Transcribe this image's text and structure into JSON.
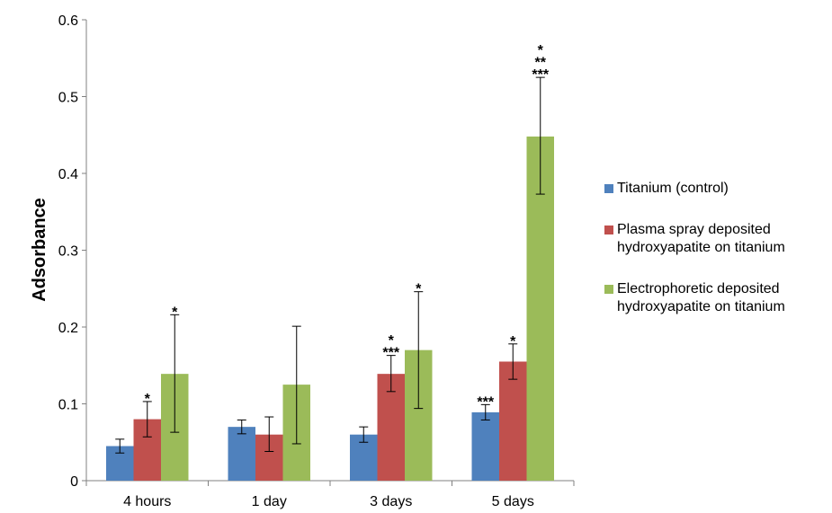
{
  "chart_data": {
    "type": "bar",
    "title": "",
    "xlabel": "",
    "ylabel": "Adsorbance",
    "ylim": [
      0,
      0.6
    ],
    "yticks": [
      "0",
      "0.1",
      "0.2",
      "0.3",
      "0.4",
      "0.5",
      "0.6"
    ],
    "ytick_values": [
      0,
      0.1,
      0.2,
      0.3,
      0.4,
      0.5,
      0.6
    ],
    "categories": [
      "4 hours",
      "1 day",
      "3 days",
      "5 days"
    ],
    "grid": false,
    "legend_position": "right",
    "series": [
      {
        "name": "Titanium (control)",
        "color": "#4f81bd",
        "values": [
          0.045,
          0.07,
          0.06,
          0.089
        ],
        "err_low": [
          0.036,
          0.061,
          0.05,
          0.079
        ],
        "err_high": [
          0.054,
          0.079,
          0.07,
          0.099
        ],
        "annotations": [
          "",
          "",
          "",
          "***"
        ]
      },
      {
        "name": "Plasma spray deposited\nhydroxyapatite on titanium",
        "color": "#c0504d",
        "values": [
          0.08,
          0.06,
          0.139,
          0.155
        ],
        "err_low": [
          0.057,
          0.038,
          0.116,
          0.132
        ],
        "err_high": [
          0.103,
          0.083,
          0.163,
          0.178
        ],
        "annotations": [
          "*",
          "",
          "*\n***",
          "*"
        ]
      },
      {
        "name": "Electrophoretic deposited\nhydroxyapatite on titanium",
        "color": "#9bbb59",
        "values": [
          0.139,
          0.125,
          0.17,
          0.448
        ],
        "err_low": [
          0.063,
          0.048,
          0.094,
          0.373
        ],
        "err_high": [
          0.216,
          0.201,
          0.246,
          0.525
        ],
        "annotations": [
          "*",
          "",
          "*",
          "*\n**\n***"
        ]
      }
    ]
  }
}
